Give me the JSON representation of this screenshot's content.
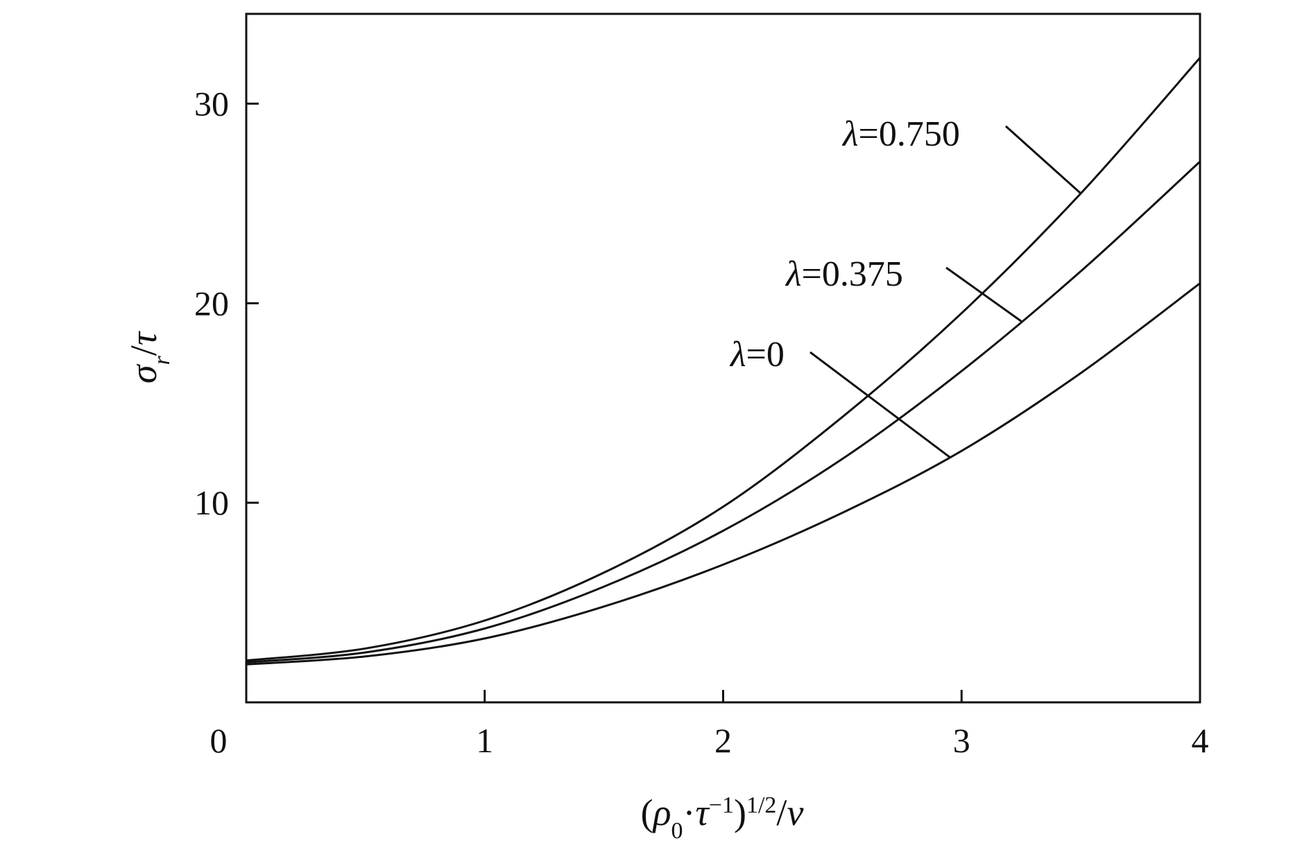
{
  "chart_data": {
    "type": "line",
    "title": "",
    "xlabel": {
      "open": "(",
      "rho": "ρ",
      "rho_sub": "0",
      "dot": "·",
      "tau": "τ",
      "tau_sup": "−1",
      "close": ")",
      "pow": "1/2",
      "slash": "/",
      "v": "v"
    },
    "ylabel": {
      "sigma": "σ",
      "sigma_sub": "r",
      "slash": "/",
      "tau": "τ"
    },
    "xlim": [
      0,
      4
    ],
    "ylim": [
      0,
      34.5
    ],
    "x_ticks": [
      0,
      1,
      2,
      3,
      4
    ],
    "x_tick_labels": [
      "0",
      "1",
      "2",
      "3",
      "4"
    ],
    "y_ticks": [
      10,
      20,
      30
    ],
    "y_tick_labels": [
      "10",
      "20",
      "30"
    ],
    "grid": false,
    "legend": "none",
    "line_color": "#111111",
    "series": [
      {
        "name": "λ=0.750",
        "x": [
          0,
          0.5,
          1.0,
          1.5,
          2.0,
          2.5,
          3.0,
          3.5,
          4.0
        ],
        "y": [
          2.1,
          2.7,
          4.1,
          6.5,
          9.8,
          14.3,
          19.5,
          25.5,
          32.3
        ]
      },
      {
        "name": "λ=0.375",
        "x": [
          0,
          0.5,
          1.0,
          1.5,
          2.0,
          2.5,
          3.0,
          3.5,
          4.0
        ],
        "y": [
          2.0,
          2.5,
          3.7,
          5.8,
          8.6,
          12.2,
          16.6,
          21.6,
          27.1
        ]
      },
      {
        "name": "λ=0",
        "x": [
          0,
          0.5,
          1.0,
          1.5,
          2.0,
          2.5,
          3.0,
          3.5,
          4.0
        ],
        "y": [
          1.9,
          2.3,
          3.2,
          4.8,
          6.9,
          9.5,
          12.6,
          16.5,
          21.0
        ]
      }
    ],
    "annotations": [
      {
        "symbol": "λ",
        "value": "=0.750",
        "series": 0,
        "point_x": 3.5
      },
      {
        "symbol": "λ",
        "value": "=0.375",
        "series": 1,
        "point_x": 3.25
      },
      {
        "symbol": "λ",
        "value": "=0",
        "series": 2,
        "point_x": 2.95
      }
    ]
  }
}
